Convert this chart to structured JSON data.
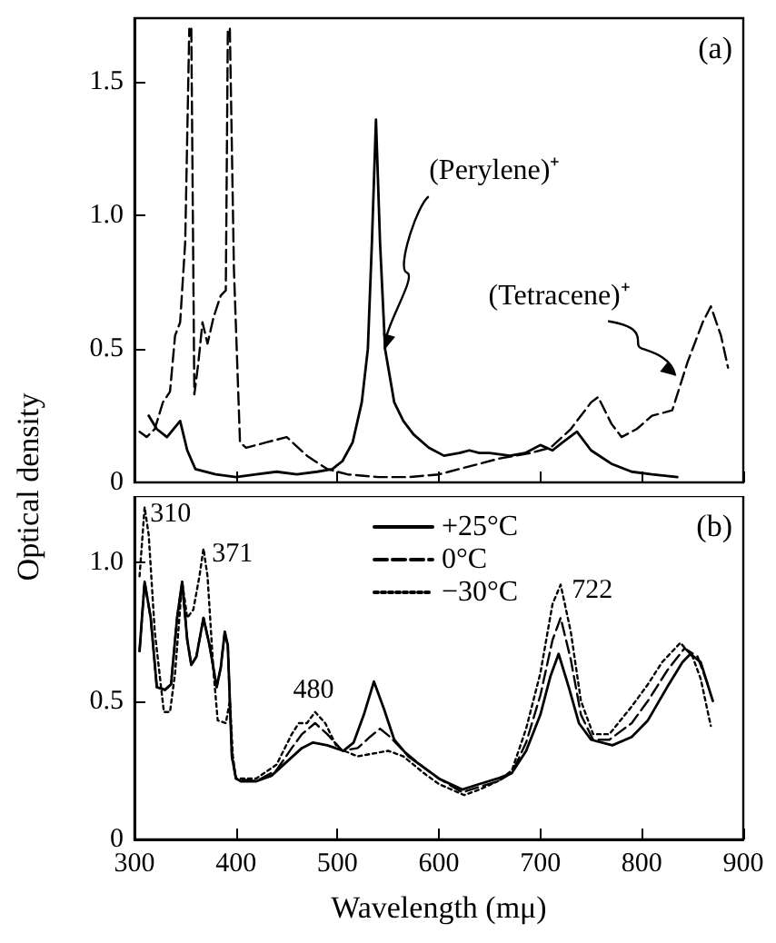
{
  "chart_data": [
    {
      "type": "line",
      "ylabel": "Optical density",
      "xlim": [
        300,
        900
      ],
      "xticks": [
        300,
        400,
        500,
        600,
        700,
        800,
        900
      ],
      "ylim": [
        0,
        1.74
      ],
      "yticks": [
        0,
        {
          "value": 0.5,
          "label": "0.5"
        },
        {
          "value": 1,
          "label": "1.0"
        },
        {
          "value": 1.5,
          "label": "1.5"
        }
      ],
      "tick_labels": "y",
      "annotations": [
        "(a)",
        {
          "text": "(Perylene)⁺",
          "x": 547,
          "y": 0.5
        },
        {
          "text": "(Tetracene)⁺",
          "x": 833,
          "y": 0.4
        }
      ],
      "series": [
        {
          "color": "#000000",
          "line_style": "solid",
          "x": [
            314,
            322,
            332,
            345,
            352,
            360,
            380,
            400,
            420,
            440,
            460,
            480,
            495,
            505,
            515,
            524,
            530,
            534,
            538,
            542,
            547,
            556,
            565,
            575,
            590,
            605,
            620,
            630,
            640,
            650,
            670,
            685,
            700,
            712,
            722,
            736,
            750,
            770,
            790,
            810,
            835
          ],
          "values": [
            0.25,
            0.2,
            0.17,
            0.23,
            0.12,
            0.05,
            0.03,
            0.02,
            0.03,
            0.04,
            0.03,
            0.04,
            0.05,
            0.08,
            0.15,
            0.3,
            0.5,
            0.9,
            1.36,
            0.9,
            0.5,
            0.3,
            0.23,
            0.18,
            0.13,
            0.1,
            0.11,
            0.12,
            0.11,
            0.11,
            0.1,
            0.11,
            0.14,
            0.12,
            0.15,
            0.19,
            0.12,
            0.07,
            0.04,
            0.03,
            0.02
          ]
        },
        {
          "color": "#000000",
          "line_style": "dashed",
          "x": [
            305,
            312,
            320,
            328,
            335,
            340,
            345,
            350,
            352,
            354,
            355,
            356,
            359,
            363,
            367,
            372,
            378,
            385,
            390,
            391,
            392,
            393,
            394,
            398,
            404,
            410,
            430,
            450,
            470,
            490,
            510,
            540,
            570,
            600,
            630,
            660,
            690,
            710,
            730,
            750,
            757,
            770,
            780,
            795,
            810,
            830,
            845,
            860,
            868,
            878,
            885
          ],
          "values": [
            0.19,
            0.17,
            0.2,
            0.3,
            0.34,
            0.55,
            0.6,
            0.9,
            1.3,
            1.7,
            null,
            1.7,
            0.33,
            0.45,
            0.6,
            0.52,
            0.62,
            0.7,
            0.72,
            1.2,
            1.7,
            null,
            1.7,
            0.8,
            0.15,
            0.13,
            0.15,
            0.17,
            0.1,
            0.05,
            0.03,
            0.02,
            0.02,
            0.03,
            0.06,
            0.09,
            0.11,
            0.13,
            0.2,
            0.3,
            0.32,
            0.22,
            0.17,
            0.2,
            0.25,
            0.27,
            0.45,
            0.6,
            0.66,
            0.55,
            0.43
          ]
        }
      ]
    },
    {
      "type": "line",
      "xlabel": "Wavelength (mμ)",
      "xlim": [
        300,
        900
      ],
      "xticks": [
        300,
        400,
        500,
        600,
        700,
        800,
        900
      ],
      "ylim": [
        0,
        1.24
      ],
      "yticks": [
        0,
        {
          "value": 0.5,
          "label": "0.5"
        },
        {
          "value": 1,
          "label": "1.0"
        }
      ],
      "legend": "top",
      "annotations": [
        "(b)",
        {
          "text": "310",
          "x": 310,
          "y": 1.2
        },
        {
          "text": "371",
          "x": 371,
          "y": 1.05
        },
        {
          "text": "480",
          "x": 480,
          "y": 0.46
        },
        {
          "text": "722",
          "x": 722,
          "y": 0.92
        }
      ],
      "series": [
        {
          "name": "+25°C",
          "color": "#000000",
          "line_style": "solid",
          "x": [
            305,
            310,
            316,
            322,
            330,
            336,
            342,
            347,
            352,
            356,
            361,
            368,
            374,
            381,
            385,
            389,
            392,
            396,
            400,
            405,
            420,
            435,
            450,
            465,
            476,
            490,
            506,
            516,
            526,
            536,
            546,
            556,
            570,
            585,
            600,
            623,
            640,
            658,
            672,
            686,
            700,
            710,
            718,
            728,
            738,
            750,
            771,
            790,
            806,
            825,
            840,
            848,
            858,
            870
          ],
          "values": [
            0.68,
            0.93,
            0.8,
            0.55,
            0.54,
            0.56,
            0.8,
            0.93,
            0.72,
            0.63,
            0.66,
            0.8,
            0.7,
            0.55,
            0.62,
            0.75,
            0.7,
            0.3,
            0.22,
            0.21,
            0.21,
            0.23,
            0.28,
            0.33,
            0.35,
            0.34,
            0.32,
            0.35,
            0.45,
            0.57,
            0.47,
            0.36,
            0.3,
            0.26,
            0.22,
            0.18,
            0.2,
            0.22,
            0.24,
            0.32,
            0.45,
            0.59,
            0.67,
            0.55,
            0.42,
            0.36,
            0.34,
            0.37,
            0.43,
            0.55,
            0.64,
            0.67,
            0.64,
            0.5
          ]
        },
        {
          "name": "0°C",
          "color": "#000000",
          "line_style": "dashed",
          "x": [
            305,
            310,
            316,
            322,
            330,
            336,
            342,
            347,
            352,
            356,
            361,
            368,
            374,
            381,
            385,
            389,
            392,
            396,
            400,
            420,
            440,
            455,
            465,
            478,
            490,
            505,
            520,
            532,
            542,
            552,
            565,
            585,
            600,
            623,
            640,
            658,
            672,
            686,
            700,
            712,
            720,
            730,
            740,
            752,
            768,
            790,
            806,
            825,
            842,
            855,
            865
          ],
          "values": [
            0.68,
            0.93,
            0.8,
            0.55,
            0.54,
            0.56,
            0.8,
            0.93,
            0.72,
            0.63,
            0.66,
            0.8,
            0.7,
            0.55,
            0.62,
            0.75,
            0.7,
            0.3,
            0.22,
            0.21,
            0.25,
            0.33,
            0.38,
            0.42,
            0.38,
            0.32,
            0.33,
            0.37,
            0.4,
            0.37,
            0.32,
            0.26,
            0.22,
            0.17,
            0.19,
            0.21,
            0.24,
            0.35,
            0.52,
            0.72,
            0.8,
            0.65,
            0.45,
            0.36,
            0.36,
            0.42,
            0.5,
            0.61,
            0.69,
            0.66,
            0.56
          ]
        },
        {
          "name": "−30°C",
          "color": "#000000",
          "line_style": "dotted",
          "x": [
            305,
            310,
            314,
            320,
            329,
            335,
            340,
            347,
            352,
            358,
            364,
            368,
            372,
            378,
            382,
            390,
            394,
            397,
            400,
            420,
            440,
            455,
            462,
            470,
            478,
            488,
            500,
            520,
            535,
            550,
            565,
            585,
            600,
            625,
            640,
            658,
            672,
            686,
            700,
            712,
            720,
            730,
            740,
            752,
            768,
            790,
            806,
            820,
            838,
            850,
            858,
            868
          ],
          "values": [
            0.95,
            1.2,
            1.1,
            0.75,
            0.46,
            0.46,
            0.6,
            0.93,
            0.8,
            0.83,
            0.95,
            1.05,
            0.95,
            0.6,
            0.43,
            0.42,
            0.5,
            0.3,
            0.22,
            0.22,
            0.27,
            0.38,
            0.42,
            0.42,
            0.46,
            0.42,
            0.33,
            0.3,
            0.31,
            0.32,
            0.3,
            0.24,
            0.2,
            0.16,
            0.18,
            0.21,
            0.25,
            0.4,
            0.6,
            0.85,
            0.92,
            0.75,
            0.5,
            0.38,
            0.38,
            0.48,
            0.56,
            0.64,
            0.71,
            0.66,
            0.58,
            0.41
          ]
        }
      ]
    }
  ]
}
